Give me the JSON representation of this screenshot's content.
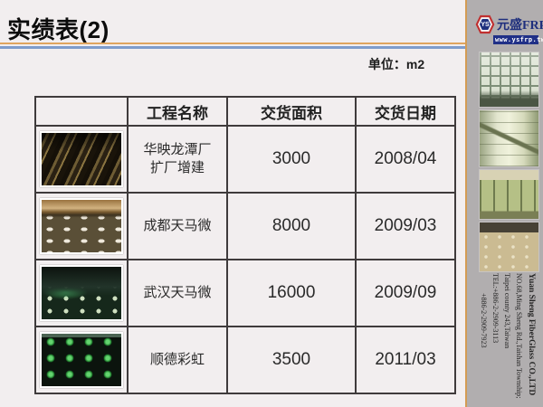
{
  "slide": {
    "title": "实绩表(2)",
    "unit_label": "单位：m2"
  },
  "table": {
    "headers": {
      "photo": "",
      "name": "工程名称",
      "area": "交货面积",
      "date": "交货日期"
    },
    "rows": [
      {
        "photo": "factory-ceiling-steel-structure",
        "name": "华映龙潭厂\n扩厂增建",
        "area": "3000",
        "date": "2008/04"
      },
      {
        "photo": "construction-site-tank-foundations",
        "name": "成都天马微",
        "area": "8000",
        "date": "2009/03"
      },
      {
        "photo": "factory-interior-green-floor",
        "name": "武汉天马微",
        "area": "16000",
        "date": "2009/09"
      },
      {
        "photo": "green-frp-dome-grid",
        "name": "顺德彩虹",
        "area": "3500",
        "date": "2011/03"
      }
    ]
  },
  "sidebar": {
    "logo": {
      "badge": "YS",
      "brand": "元盛FRP",
      "website": "www.ysfrp.tw"
    },
    "photos": [
      "frp-coffered-ceiling",
      "frp-tank-with-pipes",
      "frp-storage-tanks-row",
      "frp-floor-round-covers"
    ],
    "company_lines": [
      "Yuan Sheng FiberGlass CO.,LTD",
      "NO.68,Ming Sheng Rd.,Taishan Township;",
      "Taipei county 243,Taiwan",
      "TEL:+886-2-2909-3113",
      "+886-2-2909-7923"
    ]
  },
  "colors": {
    "accent_orange": "#dfa45e",
    "accent_blue": "#7e9ccb",
    "brand_navy": "#1f2f7d",
    "logo_red": "#c03030",
    "sidebar_grey": "#b1aeaf"
  }
}
